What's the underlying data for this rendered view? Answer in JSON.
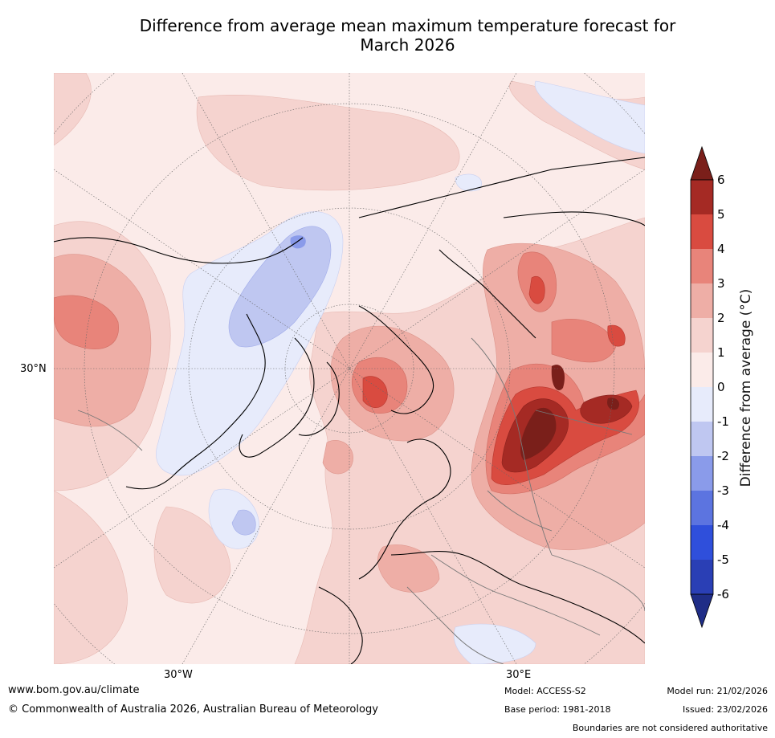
{
  "title_line1": "Difference from average mean maximum temperature forecast for",
  "title_line2": "March 2026",
  "map": {
    "lat_label": "30°N",
    "lon_labels": [
      "30°W",
      "30°E"
    ],
    "projection": "north-polar stereographic"
  },
  "colorbar": {
    "label": "Difference from average (°C)",
    "ticks": [
      "6",
      "5",
      "4",
      "3",
      "2",
      "1",
      "0",
      "-1",
      "-2",
      "-3",
      "-4",
      "-5",
      "-6"
    ],
    "bins": [
      {
        "range": "above 6",
        "color": "#7a1f1a"
      },
      {
        "range": "5 to 6",
        "color": "#a52a24"
      },
      {
        "range": "4 to 5",
        "color": "#d94b40"
      },
      {
        "range": "3 to 4",
        "color": "#e8847a"
      },
      {
        "range": "2 to 3",
        "color": "#eeaea6"
      },
      {
        "range": "1 to 2",
        "color": "#f5d3cf"
      },
      {
        "range": "0 to 1",
        "color": "#fbebe9"
      },
      {
        "range": "-1 to 0",
        "color": "#e7ebfb"
      },
      {
        "range": "-2 to -1",
        "color": "#bfc7f1"
      },
      {
        "range": "-3 to -2",
        "color": "#8a9bea"
      },
      {
        "range": "-4 to -3",
        "color": "#5c74e0"
      },
      {
        "range": "-5 to -4",
        "color": "#2f4fdb"
      },
      {
        "range": "-6 to -5",
        "color": "#2a3fb5"
      },
      {
        "range": "below -6",
        "color": "#1f2d87"
      }
    ]
  },
  "footer": {
    "website": "www.bom.gov.au/climate",
    "copyright": "© Commonwealth of Australia 2026, Australian Bureau of Meteorology",
    "model": "Model: ACCESS-S2",
    "base_period": "Base period: 1981-2018",
    "model_run": "Model run: 21/02/2026",
    "issued": "Issued: 23/02/2026",
    "disclaimer": "Boundaries are not considered authoritative"
  }
}
